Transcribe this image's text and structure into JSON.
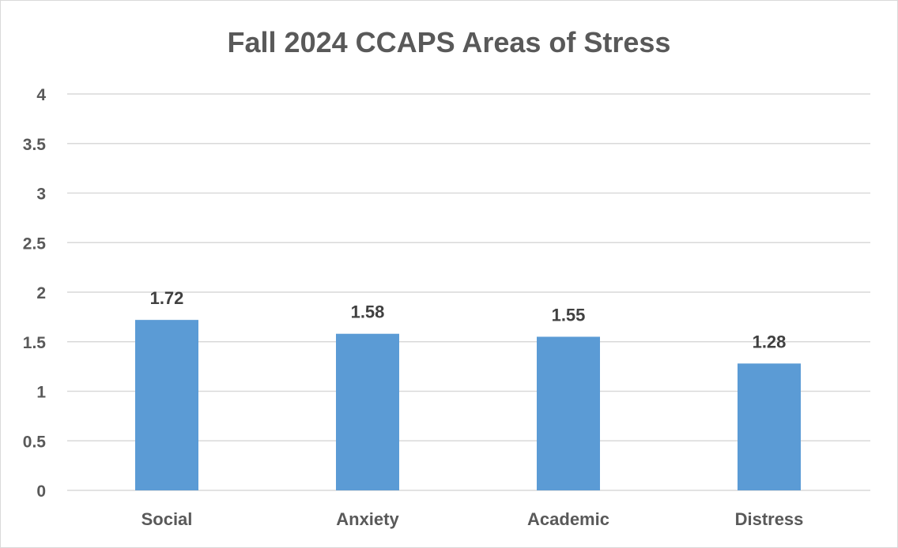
{
  "chart_data": {
    "type": "bar",
    "title": "Fall 2024 CCAPS Areas of Stress",
    "categories": [
      "Social",
      "Anxiety",
      "Academic",
      "Distress"
    ],
    "series": [
      {
        "values": [
          1.72,
          1.58,
          1.55,
          1.28
        ],
        "data_labels": [
          "1.72",
          "1.58",
          "1.55",
          "1.28"
        ],
        "color": "#5b9bd5"
      }
    ],
    "ylim": [
      0,
      4
    ],
    "yticks": [
      "0",
      "0.5",
      "1",
      "1.5",
      "2",
      "2.5",
      "3",
      "3.5",
      "4"
    ],
    "grid": true,
    "legend": "none"
  }
}
